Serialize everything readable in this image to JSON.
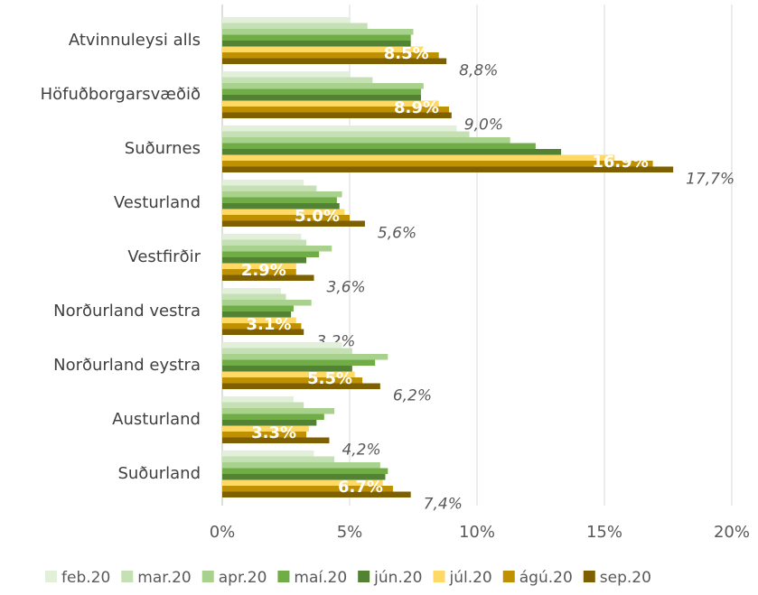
{
  "chart_data": {
    "type": "hbar",
    "categories": [
      "Atvinnuleysi alls",
      "Höfuðborgarsvæðið",
      "Suðurnes",
      "Vesturland",
      "Vestfirðir",
      "Norðurland vestra",
      "Norðurland eystra",
      "Austurland",
      "Suðurland"
    ],
    "series": [
      {
        "name": "feb.20",
        "color": "#e2efd9",
        "values": [
          5.0,
          5.0,
          9.2,
          3.2,
          3.1,
          2.3,
          4.7,
          2.8,
          3.6
        ]
      },
      {
        "name": "mar.20",
        "color": "#c5e0b4",
        "values": [
          5.7,
          5.9,
          9.7,
          3.7,
          3.3,
          2.5,
          5.1,
          3.2,
          4.4
        ]
      },
      {
        "name": "apr.20",
        "color": "#a9d18e",
        "values": [
          7.5,
          7.9,
          11.3,
          4.7,
          4.3,
          3.5,
          6.5,
          4.4,
          6.2
        ]
      },
      {
        "name": "maí.20",
        "color": "#70ad47",
        "values": [
          7.4,
          7.8,
          12.3,
          4.5,
          3.8,
          2.8,
          6.0,
          4.0,
          6.5
        ]
      },
      {
        "name": "jún.20",
        "color": "#548235",
        "values": [
          7.4,
          7.8,
          13.3,
          4.6,
          3.3,
          2.7,
          5.1,
          3.7,
          6.4
        ]
      },
      {
        "name": "júl.20",
        "color": "#ffd966",
        "values": [
          7.9,
          8.5,
          15.4,
          4.8,
          2.9,
          2.9,
          5.2,
          3.4,
          6.3
        ]
      },
      {
        "name": "ágú.20",
        "color": "#bf9000",
        "values": [
          8.5,
          8.9,
          16.9,
          5.0,
          2.9,
          3.1,
          5.5,
          3.3,
          6.7
        ],
        "value_labels": [
          "8.5%",
          "8.9%",
          "16.9%",
          "5.0%",
          "2.9%",
          "3.1%",
          "5.5%",
          "3.3%",
          "6.7%"
        ]
      },
      {
        "name": "sep.20",
        "color": "#7f6000",
        "values": [
          8.8,
          9.0,
          17.7,
          5.6,
          3.6,
          3.2,
          6.2,
          4.2,
          7.4
        ],
        "value_labels": [
          "8,8%",
          "9,0%",
          "17,7%",
          "5,6%",
          "3,6%",
          "3,2%",
          "6,2%",
          "4,2%",
          "7,4%"
        ]
      }
    ],
    "xlim": [
      0,
      20
    ],
    "xticks": [
      {
        "value": 0,
        "label": "0%"
      },
      {
        "value": 5,
        "label": "5%"
      },
      {
        "value": 10,
        "label": "10%"
      },
      {
        "value": 15,
        "label": "15%"
      },
      {
        "value": 20,
        "label": "20%"
      }
    ],
    "grid": true
  }
}
